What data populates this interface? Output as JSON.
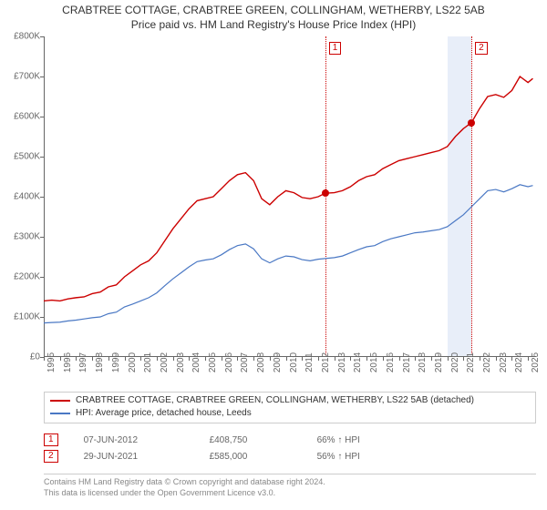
{
  "title_line1": "CRABTREE COTTAGE, CRABTREE GREEN, COLLINGHAM, WETHERBY, LS22 5AB",
  "title_line2": "Price paid vs. HM Land Registry's House Price Index (HPI)",
  "chart": {
    "type": "line",
    "plot_bg": "#ffffff",
    "axis_color": "#666666",
    "x_years": [
      1995,
      1996,
      1997,
      1998,
      1999,
      2000,
      2001,
      2002,
      2003,
      2004,
      2005,
      2006,
      2007,
      2008,
      2009,
      2010,
      2011,
      2012,
      2013,
      2014,
      2015,
      2016,
      2017,
      2018,
      2019,
      2020,
      2021,
      2022,
      2023,
      2024,
      2025
    ],
    "x_min": 1995,
    "x_max": 2025.5,
    "y_ticks": [
      0,
      100000,
      200000,
      300000,
      400000,
      500000,
      600000,
      700000,
      800000
    ],
    "y_tick_labels": [
      "£0",
      "£100K",
      "£200K",
      "£300K",
      "£400K",
      "£500K",
      "£600K",
      "£700K",
      "£800K"
    ],
    "y_min": 0,
    "y_max": 800000,
    "highlight_band": {
      "x_from": 2020.0,
      "x_to": 2021.5,
      "color": "#e8eef9"
    },
    "series": [
      {
        "name": "CRABTREE COTTAGE, CRABTREE GREEN, COLLINGHAM, WETHERBY, LS22 5AB (detached)",
        "color": "#cc0000",
        "width": 1.4,
        "points": [
          [
            1995.0,
            140000
          ],
          [
            1995.5,
            142000
          ],
          [
            1996.0,
            140000
          ],
          [
            1996.5,
            145000
          ],
          [
            1997.0,
            148000
          ],
          [
            1997.5,
            150000
          ],
          [
            1998.0,
            158000
          ],
          [
            1998.5,
            162000
          ],
          [
            1999.0,
            175000
          ],
          [
            1999.5,
            180000
          ],
          [
            2000.0,
            200000
          ],
          [
            2000.5,
            215000
          ],
          [
            2001.0,
            230000
          ],
          [
            2001.5,
            240000
          ],
          [
            2002.0,
            260000
          ],
          [
            2002.5,
            290000
          ],
          [
            2003.0,
            320000
          ],
          [
            2003.5,
            345000
          ],
          [
            2004.0,
            370000
          ],
          [
            2004.5,
            390000
          ],
          [
            2005.0,
            395000
          ],
          [
            2005.5,
            400000
          ],
          [
            2006.0,
            420000
          ],
          [
            2006.5,
            440000
          ],
          [
            2007.0,
            455000
          ],
          [
            2007.5,
            460000
          ],
          [
            2008.0,
            440000
          ],
          [
            2008.5,
            395000
          ],
          [
            2009.0,
            380000
          ],
          [
            2009.5,
            400000
          ],
          [
            2010.0,
            415000
          ],
          [
            2010.5,
            410000
          ],
          [
            2011.0,
            398000
          ],
          [
            2011.5,
            395000
          ],
          [
            2012.0,
            400000
          ],
          [
            2012.44,
            408750
          ],
          [
            2013.0,
            410000
          ],
          [
            2013.5,
            415000
          ],
          [
            2014.0,
            425000
          ],
          [
            2014.5,
            440000
          ],
          [
            2015.0,
            450000
          ],
          [
            2015.5,
            455000
          ],
          [
            2016.0,
            470000
          ],
          [
            2016.5,
            480000
          ],
          [
            2017.0,
            490000
          ],
          [
            2017.5,
            495000
          ],
          [
            2018.0,
            500000
          ],
          [
            2018.5,
            505000
          ],
          [
            2019.0,
            510000
          ],
          [
            2019.5,
            515000
          ],
          [
            2020.0,
            525000
          ],
          [
            2020.5,
            550000
          ],
          [
            2021.0,
            570000
          ],
          [
            2021.5,
            585000
          ],
          [
            2022.0,
            620000
          ],
          [
            2022.5,
            650000
          ],
          [
            2023.0,
            655000
          ],
          [
            2023.5,
            648000
          ],
          [
            2024.0,
            665000
          ],
          [
            2024.5,
            700000
          ],
          [
            2025.0,
            685000
          ],
          [
            2025.3,
            695000
          ]
        ]
      },
      {
        "name": "HPI: Average price, detached house, Leeds",
        "color": "#4A78C4",
        "width": 1.2,
        "points": [
          [
            1995.0,
            85000
          ],
          [
            1995.5,
            86000
          ],
          [
            1996.0,
            87000
          ],
          [
            1996.5,
            90000
          ],
          [
            1997.0,
            92000
          ],
          [
            1997.5,
            95000
          ],
          [
            1998.0,
            98000
          ],
          [
            1998.5,
            100000
          ],
          [
            1999.0,
            108000
          ],
          [
            1999.5,
            112000
          ],
          [
            2000.0,
            125000
          ],
          [
            2000.5,
            132000
          ],
          [
            2001.0,
            140000
          ],
          [
            2001.5,
            148000
          ],
          [
            2002.0,
            160000
          ],
          [
            2002.5,
            178000
          ],
          [
            2003.0,
            195000
          ],
          [
            2003.5,
            210000
          ],
          [
            2004.0,
            225000
          ],
          [
            2004.5,
            238000
          ],
          [
            2005.0,
            242000
          ],
          [
            2005.5,
            245000
          ],
          [
            2006.0,
            255000
          ],
          [
            2006.5,
            268000
          ],
          [
            2007.0,
            278000
          ],
          [
            2007.5,
            282000
          ],
          [
            2008.0,
            270000
          ],
          [
            2008.5,
            245000
          ],
          [
            2009.0,
            235000
          ],
          [
            2009.5,
            245000
          ],
          [
            2010.0,
            252000
          ],
          [
            2010.5,
            250000
          ],
          [
            2011.0,
            243000
          ],
          [
            2011.5,
            240000
          ],
          [
            2012.0,
            244000
          ],
          [
            2012.5,
            246000
          ],
          [
            2013.0,
            248000
          ],
          [
            2013.5,
            252000
          ],
          [
            2014.0,
            260000
          ],
          [
            2014.5,
            268000
          ],
          [
            2015.0,
            275000
          ],
          [
            2015.5,
            278000
          ],
          [
            2016.0,
            288000
          ],
          [
            2016.5,
            295000
          ],
          [
            2017.0,
            300000
          ],
          [
            2017.5,
            305000
          ],
          [
            2018.0,
            310000
          ],
          [
            2018.5,
            312000
          ],
          [
            2019.0,
            315000
          ],
          [
            2019.5,
            318000
          ],
          [
            2020.0,
            325000
          ],
          [
            2020.5,
            340000
          ],
          [
            2021.0,
            355000
          ],
          [
            2021.5,
            375000
          ],
          [
            2022.0,
            395000
          ],
          [
            2022.5,
            415000
          ],
          [
            2023.0,
            418000
          ],
          [
            2023.5,
            412000
          ],
          [
            2024.0,
            420000
          ],
          [
            2024.5,
            430000
          ],
          [
            2025.0,
            425000
          ],
          [
            2025.3,
            428000
          ]
        ]
      }
    ],
    "markers": [
      {
        "n": "1",
        "x": 2012.44,
        "y": 408750,
        "color": "#cc0000"
      },
      {
        "n": "2",
        "x": 2021.5,
        "y": 585000,
        "color": "#cc0000"
      }
    ]
  },
  "legend": {
    "items": [
      {
        "color": "#cc0000",
        "label": "CRABTREE COTTAGE, CRABTREE GREEN, COLLINGHAM, WETHERBY, LS22 5AB (detached)"
      },
      {
        "color": "#4A78C4",
        "label": "HPI: Average price, detached house, Leeds"
      }
    ]
  },
  "events": [
    {
      "n": "1",
      "color": "#cc0000",
      "date": "07-JUN-2012",
      "price": "£408,750",
      "vs_hpi": "66% ↑ HPI"
    },
    {
      "n": "2",
      "color": "#cc0000",
      "date": "29-JUN-2021",
      "price": "£585,000",
      "vs_hpi": "56% ↑ HPI"
    }
  ],
  "footnote_line1": "Contains HM Land Registry data © Crown copyright and database right 2024.",
  "footnote_line2": "This data is licensed under the Open Government Licence v3.0."
}
